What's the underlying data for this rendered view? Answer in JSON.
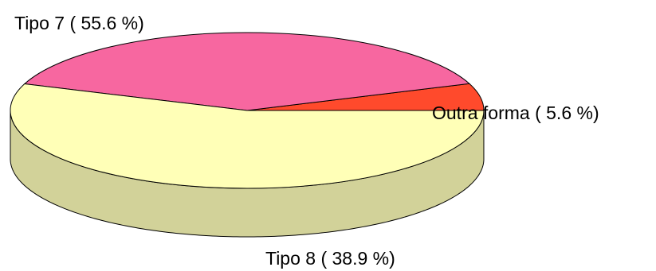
{
  "chart_data": {
    "type": "pie",
    "style": "3d",
    "title": "",
    "slices": [
      {
        "label": "Outra forma ( 5.6 %)",
        "value": 5.6,
        "color": "#FF4A2C",
        "side_color": "#D4D4D4"
      },
      {
        "label": "Tipo 8 ( 38.9 %)",
        "value": 38.9,
        "color": "#F767A0",
        "side_color": "#C85485"
      },
      {
        "label": "Tipo 7 ( 55.6 %)",
        "value": 55.6,
        "color": "#FFFFB7",
        "side_color": "#D2D299"
      }
    ]
  }
}
